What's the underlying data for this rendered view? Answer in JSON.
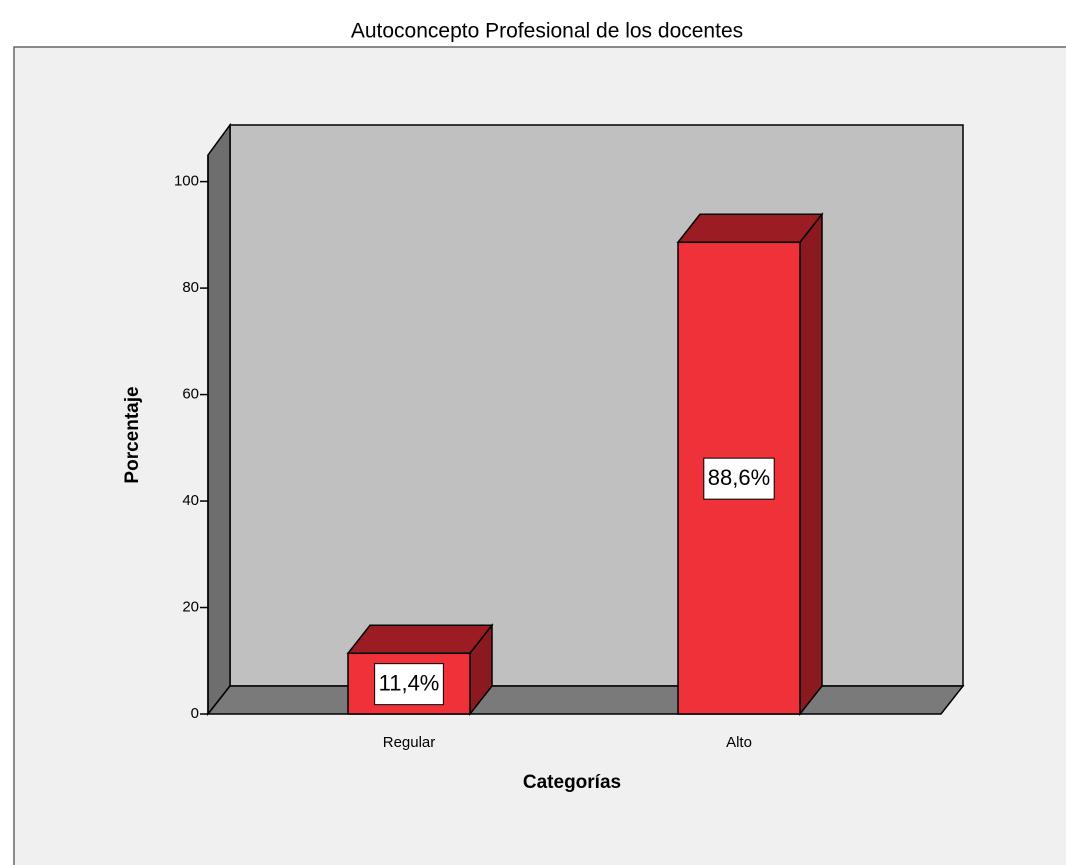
{
  "chart_data": {
    "type": "bar3d",
    "title": "Autoconcepto Profesional de los docentes",
    "x_label": "Categorías",
    "y_label": "Porcentaje",
    "categories": [
      "Regular",
      "Alto"
    ],
    "values": [
      11.4,
      88.6
    ],
    "value_labels": [
      "11,4%",
      "88,6%"
    ],
    "color": "#ef323a",
    "ylim": [
      0,
      105
    ],
    "yticks": [
      0,
      20,
      40,
      60,
      80,
      100
    ]
  }
}
